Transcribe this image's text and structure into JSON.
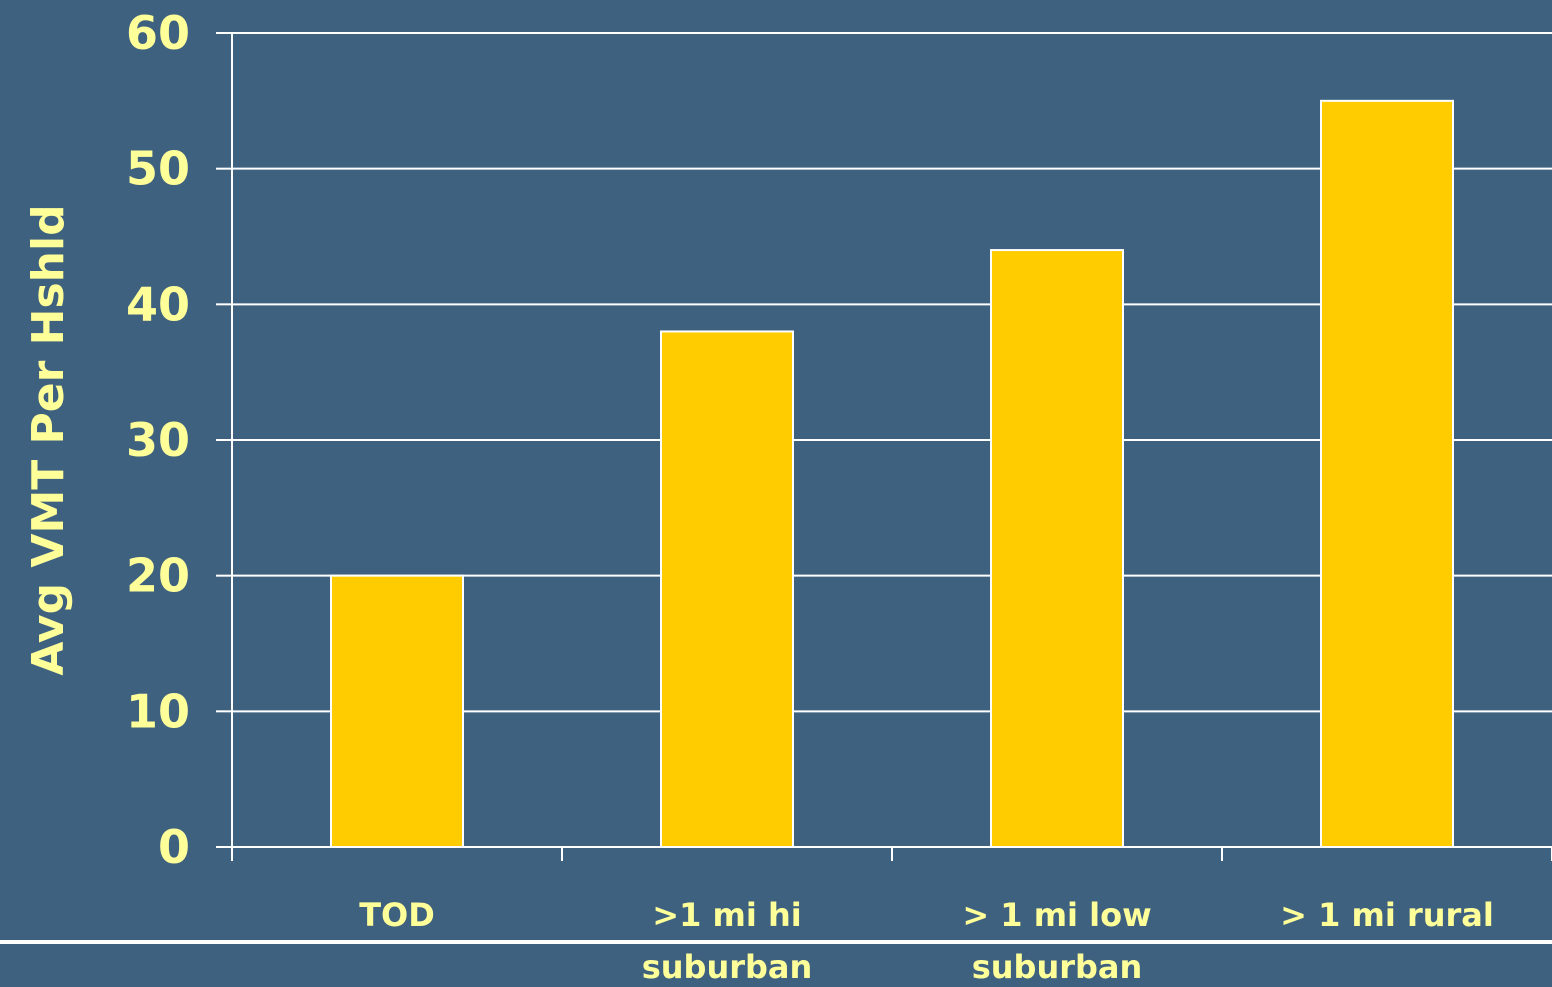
{
  "chart_data": {
    "type": "bar",
    "title": "",
    "xlabel": "",
    "ylabel": "Avg VMT Per Hshld",
    "categories": [
      [
        "TOD"
      ],
      [
        ">1 mi hi",
        "suburban"
      ],
      [
        "> 1 mi low",
        "suburban"
      ],
      [
        "> 1 mi rural"
      ]
    ],
    "values": [
      20,
      38,
      44,
      55
    ],
    "ylim": [
      0,
      60
    ],
    "yticks": [
      0,
      10,
      20,
      30,
      40,
      50,
      60
    ],
    "grid": true,
    "legend": "none"
  },
  "colors": {
    "background": "#3f6180",
    "bar_fill": "#ffcc00",
    "bar_stroke": "#ffffff",
    "grid": "#ffffff",
    "label_text": "#ffff99"
  }
}
